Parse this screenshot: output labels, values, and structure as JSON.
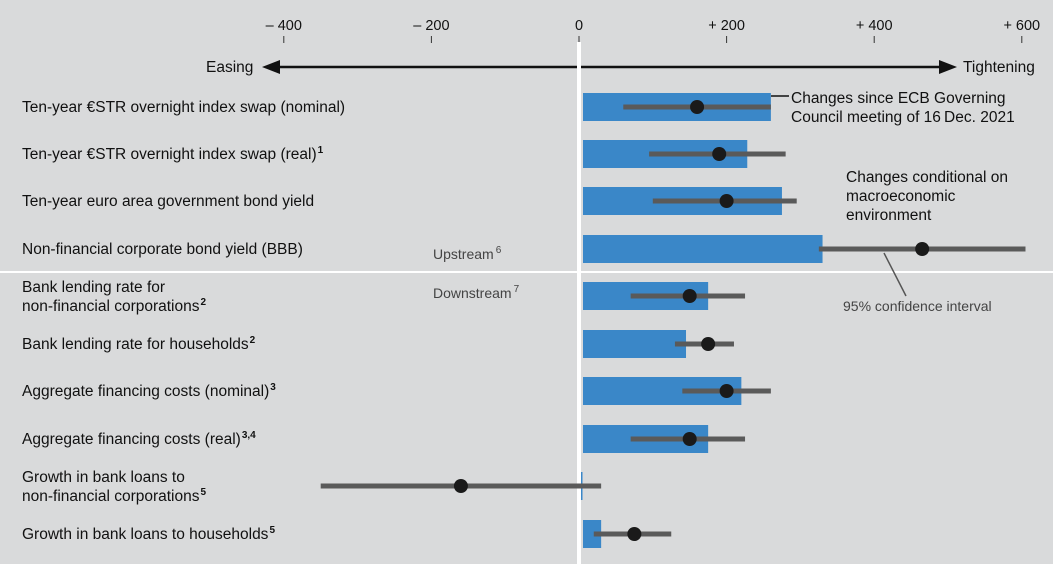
{
  "chart_data": {
    "type": "bar",
    "xlim": [
      -780,
      640
    ],
    "ticks": [
      {
        "value": -400,
        "label": "– 400"
      },
      {
        "value": -200,
        "label": "– 200"
      },
      {
        "value": 0,
        "label": "0"
      },
      {
        "value": 200,
        "label": "+ 200"
      },
      {
        "value": 400,
        "label": "+ 400"
      },
      {
        "value": 600,
        "label": "+ 600"
      }
    ],
    "direction_left": "Easing",
    "direction_right": "Tightening",
    "colors": {
      "bar": "#3a87c8",
      "point": "#1a1a1a",
      "ci": "#5a5a5a",
      "background": "#d9dadb",
      "grid": "#ffffff"
    },
    "series": [
      {
        "name": "Changes since ECB Governing Council meeting of 16 Dec. 2021",
        "kind": "bar"
      },
      {
        "name": "Changes conditional on macroeconomic environment",
        "kind": "point"
      },
      {
        "name": "95% confidence interval",
        "kind": "interval"
      }
    ],
    "rows": [
      {
        "label": "Ten-year €STR overnight index swap (nominal)",
        "sup": "",
        "bar": 260,
        "point": 160,
        "ci_low": 60,
        "ci_high": 260
      },
      {
        "label": "Ten-year €STR overnight index swap (real)",
        "sup": "1",
        "bar": 228,
        "point": 190,
        "ci_low": 95,
        "ci_high": 280
      },
      {
        "label": "Ten-year euro area government bond yield",
        "sup": "",
        "bar": 275,
        "point": 200,
        "ci_low": 100,
        "ci_high": 295
      },
      {
        "label": "Non-financial corporate bond yield (BBB)",
        "sup": "",
        "bar": 330,
        "point": 465,
        "ci_low": 325,
        "ci_high": 605
      },
      {
        "label": "Bank lending rate for",
        "label2": "non-financial corporations",
        "sup": "2",
        "bar": 175,
        "point": 150,
        "ci_low": 70,
        "ci_high": 225
      },
      {
        "label": "Bank lending rate for households",
        "sup": "2",
        "bar": 145,
        "point": 175,
        "ci_low": 130,
        "ci_high": 210
      },
      {
        "label": "Aggregate financing costs (nominal)",
        "sup": "3",
        "bar": 220,
        "point": 200,
        "ci_low": 140,
        "ci_high": 260
      },
      {
        "label": "Aggregate financing costs (real)",
        "sup": "3,4",
        "bar": 175,
        "point": 150,
        "ci_low": 70,
        "ci_high": 225
      },
      {
        "label": "Growth in bank loans to",
        "label2": "non-financial corporations",
        "sup": "5",
        "bar": 0,
        "point": -160,
        "ci_low": -350,
        "ci_high": 30
      },
      {
        "label": "Growth in bank loans to households",
        "sup": "5",
        "bar": 30,
        "point": 75,
        "ci_low": 20,
        "ci_high": 125
      }
    ],
    "annotations": {
      "bar_legend_line1": "Changes since ECB Governing",
      "bar_legend_line2": "Council meeting of 16 Dec. 2021",
      "point_legend_line1": "Changes conditional on",
      "point_legend_line2": "macroeconomic",
      "point_legend_line3": "environment",
      "ci_legend": "95% confidence interval",
      "upstream": "Upstream",
      "upstream_sup": "6",
      "downstream": "Downstream",
      "downstream_sup": "7"
    }
  }
}
